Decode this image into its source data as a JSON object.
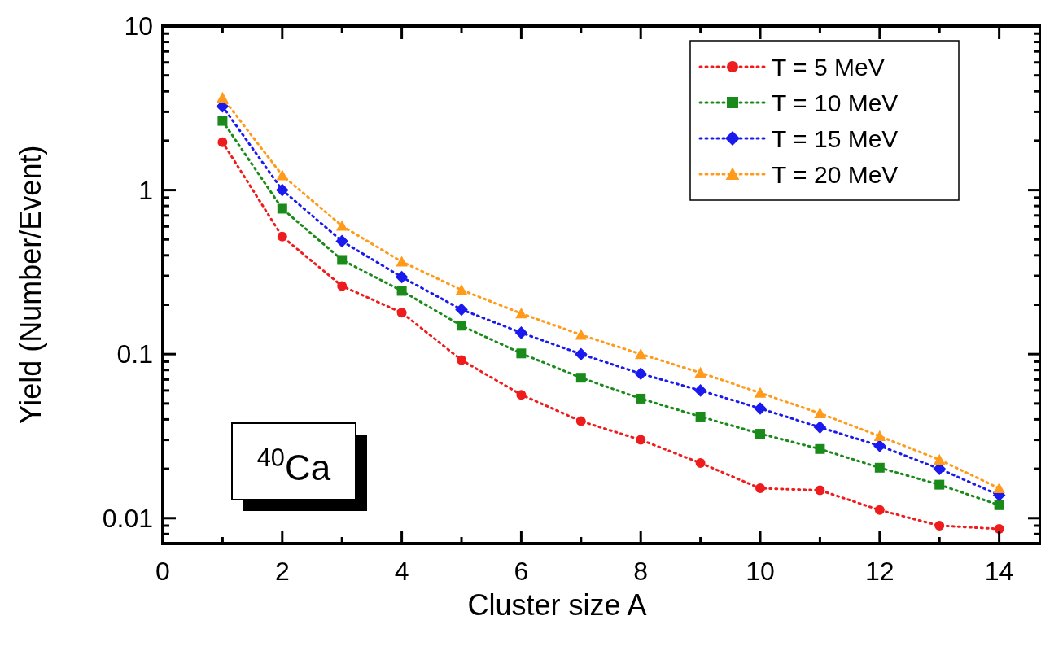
{
  "chart_data": {
    "type": "line",
    "xlabel": "Cluster size A",
    "ylabel": "Yield (Number/Event)",
    "log": "y",
    "xlim": [
      0,
      14.7
    ],
    "ylim": [
      0.007,
      10
    ],
    "xticks": [
      0,
      {
        "value": 1,
        "label": null
      },
      2,
      {
        "value": 3,
        "label": null
      },
      4,
      {
        "value": 5,
        "label": null
      },
      6,
      {
        "value": 7,
        "label": null
      },
      8,
      {
        "value": 9,
        "label": null
      },
      10,
      {
        "value": 11,
        "label": null
      },
      12,
      {
        "value": 13,
        "label": null
      },
      14
    ],
    "yticks": [
      {
        "value": 0.008,
        "label": null
      },
      {
        "value": 0.009,
        "label": null
      },
      0.01,
      {
        "value": 0.02,
        "label": null
      },
      {
        "value": 0.03,
        "label": null
      },
      {
        "value": 0.04,
        "label": null
      },
      {
        "value": 0.05,
        "label": null
      },
      {
        "value": 0.06,
        "label": null
      },
      {
        "value": 0.07,
        "label": null
      },
      {
        "value": 0.08,
        "label": null
      },
      {
        "value": 0.09,
        "label": null
      },
      0.1,
      {
        "value": 0.2,
        "label": null
      },
      {
        "value": 0.3,
        "label": null
      },
      {
        "value": 0.4,
        "label": null
      },
      {
        "value": 0.5,
        "label": null
      },
      {
        "value": 0.6,
        "label": null
      },
      {
        "value": 0.7,
        "label": null
      },
      {
        "value": 0.8,
        "label": null
      },
      {
        "value": 0.9,
        "label": null
      },
      1,
      {
        "value": 2,
        "label": null
      },
      {
        "value": 3,
        "label": null
      },
      {
        "value": 4,
        "label": null
      },
      {
        "value": 5,
        "label": null
      },
      {
        "value": 6,
        "label": null
      },
      {
        "value": 7,
        "label": null
      },
      {
        "value": 8,
        "label": null
      },
      {
        "value": 9,
        "label": null
      },
      10
    ],
    "x": [
      1,
      2,
      3,
      4,
      5,
      6,
      7,
      8,
      9,
      10,
      11,
      12,
      13,
      14
    ],
    "line_style": "dotted",
    "legend": "top right",
    "grid": false,
    "annotations": [
      "$^{40}$Ca"
    ],
    "series": [
      {
        "name": "T = 5 MeV",
        "color": "#ee1c1c",
        "marker": "circle",
        "values": [
          1.96,
          0.52,
          0.26,
          0.179,
          0.092,
          0.0565,
          0.039,
          0.03,
          0.0217,
          0.0152,
          0.0148,
          0.0112,
          0.009,
          0.0086
        ]
      },
      {
        "name": "T = 10 MeV",
        "color": "#1a8a1a",
        "marker": "square",
        "values": [
          2.64,
          0.77,
          0.375,
          0.243,
          0.149,
          0.101,
          0.0718,
          0.0535,
          0.0416,
          0.0327,
          0.0264,
          0.0203,
          0.016,
          0.012
        ]
      },
      {
        "name": "T = 15 MeV",
        "color": "#1a1aee",
        "marker": "diamond",
        "values": [
          3.24,
          1.0,
          0.488,
          0.295,
          0.187,
          0.135,
          0.1,
          0.076,
          0.06,
          0.0466,
          0.0358,
          0.0276,
          0.02,
          0.0138
        ]
      },
      {
        "name": "T = 20 MeV",
        "color": "#ff9a1a",
        "marker": "triangle",
        "values": [
          3.66,
          1.23,
          0.605,
          0.366,
          0.246,
          0.177,
          0.131,
          0.1,
          0.077,
          0.058,
          0.0435,
          0.0316,
          0.0227,
          0.0152
        ]
      }
    ]
  }
}
